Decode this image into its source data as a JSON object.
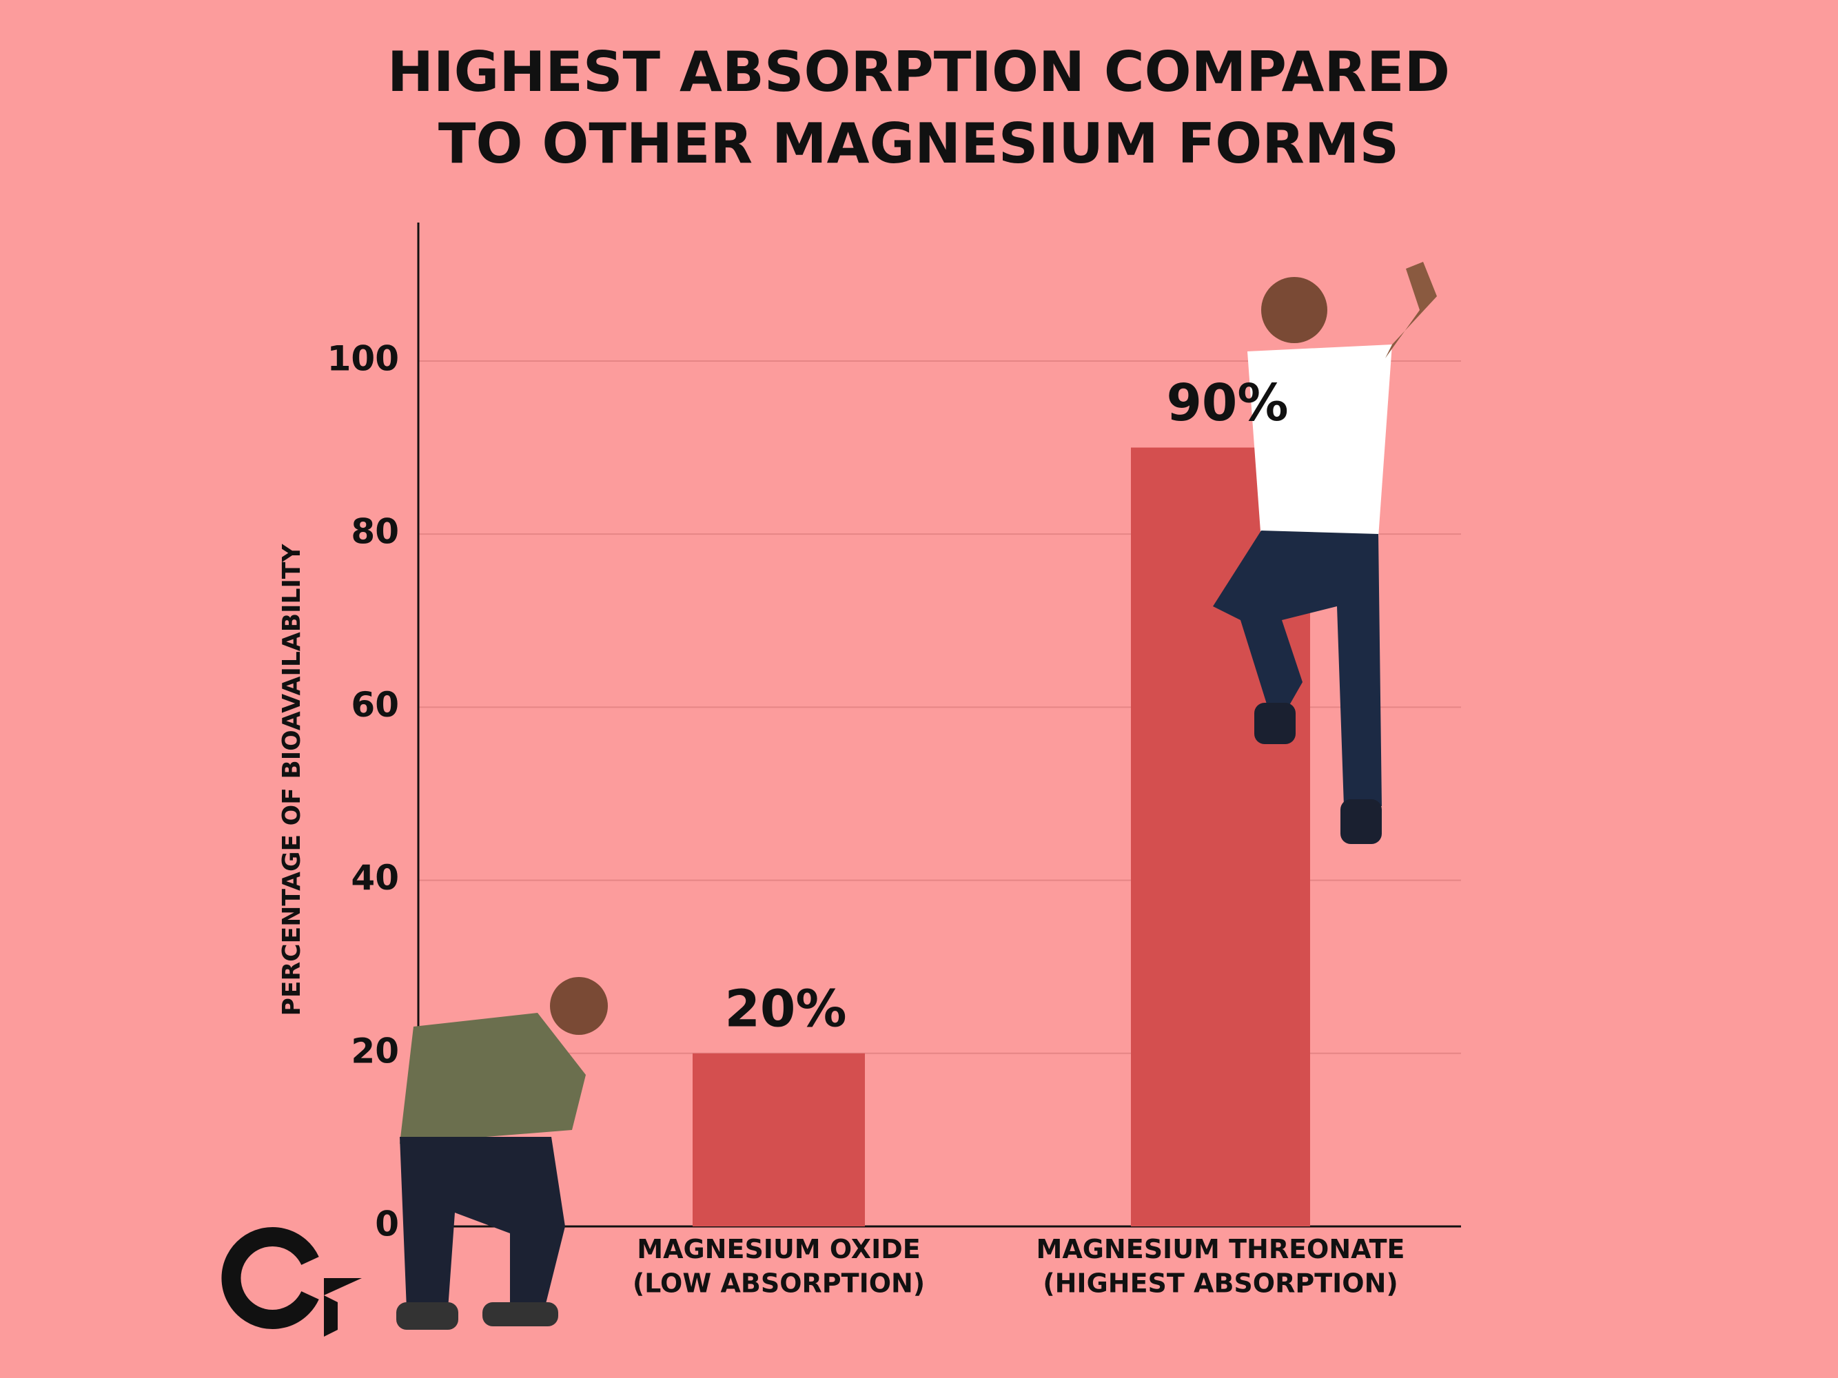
{
  "chart_data": {
    "type": "bar",
    "title": "HIGHEST ABSORPTION COMPARED\nTO OTHER MAGNESIUM FORMS",
    "y_label": "PERCENTAGE OF BIOAVAILABILITY",
    "categories": [
      "MAGNESIUM OXIDE\n(LOW ABSORPTION)",
      "MAGNESIUM THREONATE\n(HIGHEST ABSORPTION)"
    ],
    "values": [
      20,
      90
    ],
    "value_labels": [
      "20%",
      "90%"
    ],
    "color": "#d44f4f",
    "ylim": [
      0,
      116
    ],
    "yticks": [
      0,
      20,
      40,
      60,
      80,
      100
    ],
    "grid": true
  }
}
